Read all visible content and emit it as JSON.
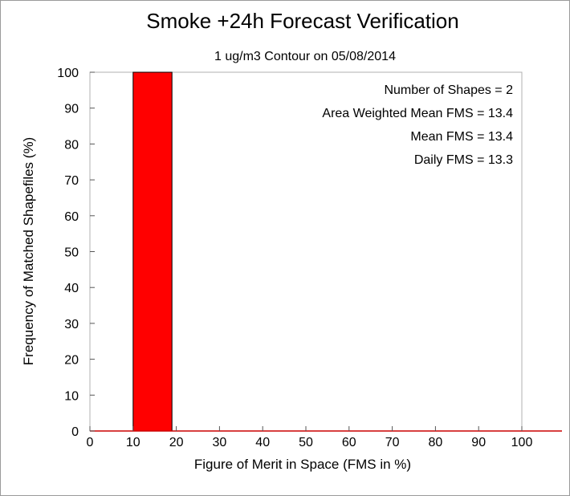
{
  "chart_data": {
    "type": "bar",
    "title": "Smoke +24h Forecast Verification",
    "subtitle": "1 ug/m3 Contour on 05/08/2014",
    "xlabel": "Figure of Merit in Space (FMS in %)",
    "ylabel": "Frequency of Matched Shapefiles (%)",
    "xlim": [
      0,
      100
    ],
    "ylim": [
      0,
      100
    ],
    "xticks": [
      0,
      10,
      20,
      30,
      40,
      50,
      60,
      70,
      80,
      90,
      100
    ],
    "yticks": [
      0,
      10,
      20,
      30,
      40,
      50,
      60,
      70,
      80,
      90,
      100
    ],
    "bins": [
      {
        "start": 10,
        "end": 19,
        "value": 100
      }
    ],
    "bar_color": "#ff0000",
    "baseline_color": "#cc0000",
    "annotations": [
      "Number of Shapes = 2",
      "Area Weighted Mean FMS = 13.4",
      "Mean FMS = 13.4",
      "Daily FMS = 13.3"
    ],
    "grid": false
  }
}
